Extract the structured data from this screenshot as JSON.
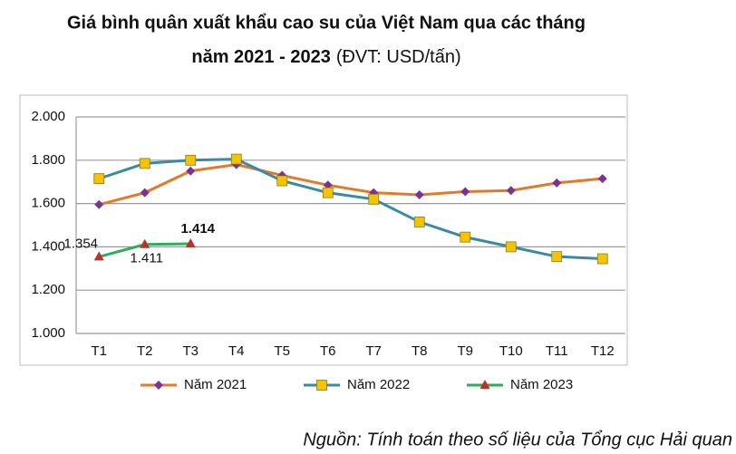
{
  "chart_data": {
    "type": "line",
    "title": [
      "Giá bình quân xuất khẩu cao su của Việt Nam qua các tháng",
      "năm 2021 - 2023"
    ],
    "subtitle": "(ĐVT: USD/tấn)",
    "categories": [
      "T1",
      "T2",
      "T3",
      "T4",
      "T5",
      "T6",
      "T7",
      "T8",
      "T9",
      "T10",
      "T11",
      "T12"
    ],
    "series": [
      {
        "name": "Năm 2021",
        "color": "#e07b2a",
        "marker": "diamond",
        "marker_color": "#7b3294",
        "values": [
          1595,
          1650,
          1750,
          1780,
          1730,
          1685,
          1650,
          1640,
          1655,
          1660,
          1695,
          1715
        ]
      },
      {
        "name": "Năm 2022",
        "color": "#3a8aa5",
        "marker": "square",
        "marker_color": "#f5c400",
        "values": [
          1715,
          1785,
          1800,
          1805,
          1705,
          1650,
          1620,
          1515,
          1445,
          1400,
          1355,
          1345
        ]
      },
      {
        "name": "Năm 2023",
        "color": "#2eae5a",
        "marker": "triangle",
        "marker_color": "#b8322a",
        "values": [
          1354,
          1411,
          1414,
          null,
          null,
          null,
          null,
          null,
          null,
          null,
          null,
          null
        ],
        "value_labels": [
          "1.354",
          "1.411",
          "1.414",
          null,
          null,
          null,
          null,
          null,
          null,
          null,
          null,
          null
        ]
      }
    ],
    "ylim": [
      1000,
      2000
    ],
    "yticks": [
      {
        "value": 1000,
        "label": "1.000"
      },
      {
        "value": 1200,
        "label": "1.200"
      },
      {
        "value": 1400,
        "label": "1.400"
      },
      {
        "value": 1600,
        "label": "1.600"
      },
      {
        "value": 1800,
        "label": "1.800"
      },
      {
        "value": 2000,
        "label": "2.000"
      }
    ],
    "grid": true,
    "legend": "bottom",
    "source": "Nguồn: Tính toán theo số liệu của Tổng cục Hải quan"
  }
}
